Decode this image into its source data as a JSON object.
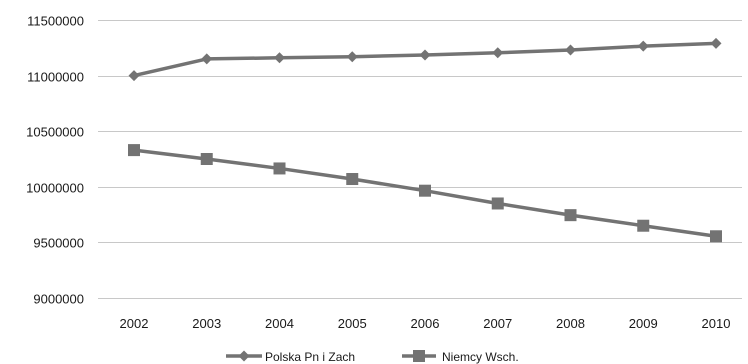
{
  "chart_data": {
    "type": "line",
    "categories": [
      "2002",
      "2003",
      "2004",
      "2005",
      "2006",
      "2007",
      "2008",
      "2009",
      "2010"
    ],
    "series": [
      {
        "name": "Polska Pn i Zach",
        "marker": "diamond",
        "color": "#737373",
        "values": [
          11000000,
          11150000,
          11160000,
          11170000,
          11185000,
          11205000,
          11230000,
          11265000,
          11290000
        ]
      },
      {
        "name": "Niemcy Wsch.",
        "marker": "square",
        "color": "#737373",
        "values": [
          10330000,
          10250000,
          10165000,
          10070000,
          9965000,
          9850000,
          9745000,
          9650000,
          9555000
        ]
      }
    ],
    "yticks": [
      "9000000",
      "9500000",
      "10000000",
      "10500000",
      "11000000",
      "11500000"
    ],
    "ylim": [
      9000000,
      11500000
    ],
    "grid": true,
    "legend_position": "bottom"
  }
}
